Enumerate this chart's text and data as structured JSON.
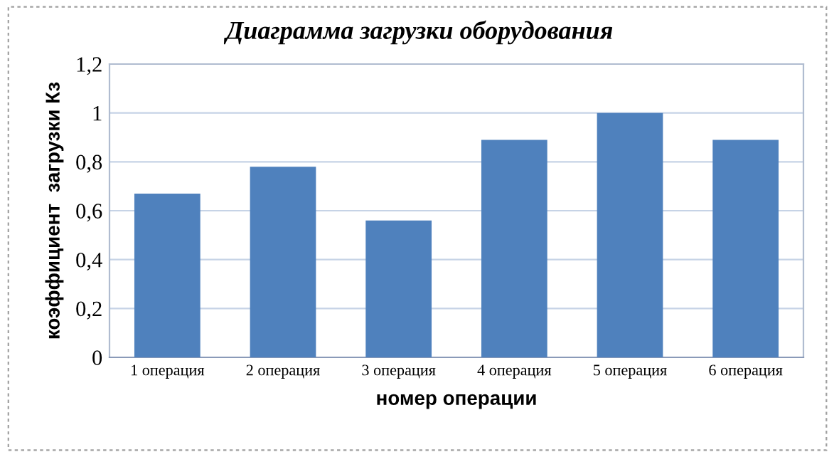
{
  "chart_data": {
    "type": "bar",
    "title": "Диаграмма загрузки оборудования",
    "xlabel": "номер операции",
    "ylabel": "коэффициент  загрузки Кз",
    "categories": [
      "1 операция",
      "2 операция",
      "3 операция",
      "4 операция",
      "5 операция",
      "6 операция"
    ],
    "values": [
      0.67,
      0.78,
      0.56,
      0.89,
      1.0,
      0.89
    ],
    "color": "#4f81bd",
    "ylim": [
      0,
      1.2
    ],
    "yticks": [
      0,
      {
        "value": 0.2,
        "label": "0,2"
      },
      {
        "value": 0.4,
        "label": "0,4"
      },
      {
        "value": 0.6,
        "label": "0,6"
      },
      {
        "value": 0.8,
        "label": "0,8"
      },
      1,
      {
        "value": 1.2,
        "label": "1,2"
      }
    ],
    "grid": "y"
  }
}
